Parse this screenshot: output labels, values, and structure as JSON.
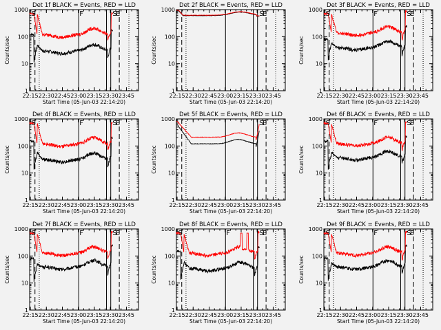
{
  "figure": {
    "layout": "3x3 grid of count-rate light curves",
    "colors": {
      "background": "#f2f2f2",
      "axis": "#000000",
      "events": "#000000",
      "lld": "#ff0000"
    }
  },
  "chart_data": [
    {
      "panel_id": "det-1f",
      "type": "line",
      "title": "Det 1f BLACK = Events, RED = LLD",
      "xlabel": "Start Time (05-Jun-03 22:14:20)",
      "ylabel": "Counts/sec",
      "y_scale": "log",
      "ylim": [
        1,
        1000
      ],
      "xlim_minutes": [
        0,
        102
      ],
      "x_tick_labels": [
        "22:15",
        "22:30",
        "22:45",
        "23:00",
        "23:15",
        "23:30",
        "23:45"
      ],
      "x_tick_offsets_min": [
        0.67,
        15.67,
        30.67,
        45.67,
        60.67,
        75.67,
        90.67
      ],
      "y_tick_labels": [
        "1",
        "10",
        "100",
        "1000"
      ],
      "y_tick_values": [
        1,
        10,
        100,
        1000
      ],
      "markers": [
        {
          "label": "S",
          "time_min": 1
        },
        {
          "label": "F",
          "time_min": 46
        },
        {
          "label": "S",
          "time_min": 77
        },
        {
          "label": "E",
          "time_min": 80
        }
      ],
      "solid_lines_min": [
        46,
        72,
        76
      ],
      "dashed_lines_min": [
        5,
        84
      ],
      "dotted_lines_min": [
        9,
        93
      ],
      "series": [
        {
          "name": "Events",
          "color": "#000000",
          "profile": "normal",
          "plateau": 30,
          "start": 120,
          "recover": 50
        },
        {
          "name": "LLD",
          "color": "#ff0000",
          "profile": "normal",
          "plateau": 120,
          "start": 700
        }
      ]
    },
    {
      "panel_id": "det-2f",
      "type": "line",
      "title": "Det 2f BLACK = Events, RED = LLD",
      "xlabel": "Start Time (05-Jun-03 22:14:20)",
      "ylabel": "Counts/sec",
      "y_scale": "log",
      "ylim": [
        1,
        1000
      ],
      "xlim_minutes": [
        0,
        102
      ],
      "x_tick_labels": [
        "22:15",
        "22:30",
        "22:45",
        "23:00",
        "23:15",
        "23:30",
        "23:45"
      ],
      "x_tick_offsets_min": [
        0.67,
        15.67,
        30.67,
        45.67,
        60.67,
        75.67,
        90.67
      ],
      "y_tick_labels": [
        "1",
        "10",
        "100",
        "1000"
      ],
      "y_tick_values": [
        1,
        10,
        100,
        1000
      ],
      "markers": [
        {
          "label": "S",
          "time_min": 77
        },
        {
          "label": "E",
          "time_min": 80
        }
      ],
      "solid_lines_min": [
        46,
        72,
        76
      ],
      "dashed_lines_min": [
        5,
        84
      ],
      "dotted_lines_min": [
        9,
        93
      ],
      "series": [
        {
          "name": "Events",
          "color": "#000000",
          "profile": "flat",
          "plateau": 600,
          "start": 900
        },
        {
          "name": "LLD",
          "color": "#ff0000",
          "profile": "flat",
          "plateau": 620,
          "start": 950
        }
      ]
    },
    {
      "panel_id": "det-3f",
      "type": "line",
      "title": "Det 3f BLACK = Events, RED = LLD",
      "xlabel": "Start Time (05-Jun-03 22:14:20)",
      "ylabel": "Counts/sec",
      "y_scale": "log",
      "ylim": [
        1,
        1000
      ],
      "xlim_minutes": [
        0,
        102
      ],
      "x_tick_labels": [
        "22:15",
        "22:30",
        "22:45",
        "23:00",
        "23:15",
        "23:30",
        "23:45"
      ],
      "x_tick_offsets_min": [
        0.67,
        15.67,
        30.67,
        45.67,
        60.67,
        75.67,
        90.67
      ],
      "y_tick_labels": [
        "1",
        "10",
        "100",
        "1000"
      ],
      "y_tick_values": [
        1,
        10,
        100,
        1000
      ],
      "markers": [
        {
          "label": "S",
          "time_min": 1
        },
        {
          "label": "F",
          "time_min": 46
        },
        {
          "label": "S",
          "time_min": 77
        },
        {
          "label": "E",
          "time_min": 80
        }
      ],
      "solid_lines_min": [
        46,
        72,
        76
      ],
      "dashed_lines_min": [
        5,
        84
      ],
      "dotted_lines_min": [
        9,
        93
      ],
      "series": [
        {
          "name": "Events",
          "color": "#000000",
          "profile": "normal",
          "plateau": 40,
          "start": 80,
          "recover": 60
        },
        {
          "name": "LLD",
          "color": "#ff0000",
          "profile": "normal",
          "plateau": 140,
          "start": 700
        }
      ]
    },
    {
      "panel_id": "det-4f",
      "type": "line",
      "title": "Det 4f BLACK = Events, RED = LLD",
      "xlabel": "Start Time (05-Jun-03 22:14:20)",
      "ylabel": "Counts/sec",
      "y_scale": "log",
      "ylim": [
        1,
        1000
      ],
      "xlim_minutes": [
        0,
        102
      ],
      "x_tick_labels": [
        "22:15",
        "22:30",
        "22:45",
        "23:00",
        "23:15",
        "23:30",
        "23:45"
      ],
      "x_tick_offsets_min": [
        0.67,
        15.67,
        30.67,
        45.67,
        60.67,
        75.67,
        90.67
      ],
      "y_tick_labels": [
        "1",
        "10",
        "100",
        "1000"
      ],
      "y_tick_values": [
        1,
        10,
        100,
        1000
      ],
      "markers": [
        {
          "label": "S",
          "time_min": 1
        },
        {
          "label": "F",
          "time_min": 46
        },
        {
          "label": "S",
          "time_min": 77
        },
        {
          "label": "E",
          "time_min": 80
        }
      ],
      "solid_lines_min": [
        46,
        72,
        76
      ],
      "dashed_lines_min": [
        5,
        84
      ],
      "dotted_lines_min": [
        9,
        93
      ],
      "series": [
        {
          "name": "Events",
          "color": "#000000",
          "profile": "normal",
          "plateau": 32,
          "start": 150,
          "recover": 60
        },
        {
          "name": "LLD",
          "color": "#ff0000",
          "profile": "normal",
          "plateau": 120,
          "start": 700
        }
      ]
    },
    {
      "panel_id": "det-5f",
      "type": "line",
      "title": "Det 5f BLACK = Events, RED = LLD",
      "xlabel": "Start Time (05-Jun-03 22:14:20)",
      "ylabel": "Counts/sec",
      "y_scale": "log",
      "ylim": [
        1,
        1000
      ],
      "xlim_minutes": [
        0,
        102
      ],
      "x_tick_labels": [
        "22:15",
        "22:30",
        "22:45",
        "23:00",
        "23:15",
        "23:30",
        "23:45"
      ],
      "x_tick_offsets_min": [
        0.67,
        15.67,
        30.67,
        45.67,
        60.67,
        75.67,
        90.67
      ],
      "y_tick_labels": [
        "1",
        "10",
        "100",
        "1000"
      ],
      "y_tick_values": [
        1,
        10,
        100,
        1000
      ],
      "markers": [
        {
          "label": "S",
          "time_min": 77
        },
        {
          "label": "E",
          "time_min": 80
        }
      ],
      "solid_lines_min": [
        46,
        72,
        76
      ],
      "dashed_lines_min": [
        5,
        84
      ],
      "dotted_lines_min": [
        9,
        93
      ],
      "series": [
        {
          "name": "Events",
          "color": "#000000",
          "profile": "smooth",
          "plateau": 120,
          "start": 600,
          "recover": 200
        },
        {
          "name": "LLD",
          "color": "#ff0000",
          "profile": "smooth",
          "plateau": 210,
          "start": 800
        }
      ]
    },
    {
      "panel_id": "det-6f",
      "type": "line",
      "title": "Det 6f BLACK = Events, RED = LLD",
      "xlabel": "Start Time (05-Jun-03 22:14:20)",
      "ylabel": "Counts/sec",
      "y_scale": "log",
      "ylim": [
        1,
        1000
      ],
      "xlim_minutes": [
        0,
        102
      ],
      "x_tick_labels": [
        "22:15",
        "22:30",
        "22:45",
        "23:00",
        "23:15",
        "23:30",
        "23:45"
      ],
      "x_tick_offsets_min": [
        0.67,
        15.67,
        30.67,
        45.67,
        60.67,
        75.67,
        90.67
      ],
      "y_tick_labels": [
        "1",
        "10",
        "100",
        "1000"
      ],
      "y_tick_values": [
        1,
        10,
        100,
        1000
      ],
      "markers": [
        {
          "label": "S",
          "time_min": 1
        },
        {
          "label": "F",
          "time_min": 46
        },
        {
          "label": "S",
          "time_min": 77
        },
        {
          "label": "E",
          "time_min": 80
        }
      ],
      "solid_lines_min": [
        46,
        72,
        76
      ],
      "dashed_lines_min": [
        5,
        84
      ],
      "dotted_lines_min": [
        9,
        93
      ],
      "series": [
        {
          "name": "Events",
          "color": "#000000",
          "profile": "normal",
          "plateau": 38,
          "start": 150,
          "recover": 60
        },
        {
          "name": "LLD",
          "color": "#ff0000",
          "profile": "normal",
          "plateau": 125,
          "start": 700
        }
      ]
    },
    {
      "panel_id": "det-7f",
      "type": "line",
      "title": "Det 7f BLACK = Events, RED = LLD",
      "xlabel": "Start Time (05-Jun-03 22:14:20)",
      "ylabel": "Counts/sec",
      "y_scale": "log",
      "ylim": [
        1,
        1000
      ],
      "xlim_minutes": [
        0,
        102
      ],
      "x_tick_labels": [
        "22:15",
        "22:30",
        "22:45",
        "23:00",
        "23:15",
        "23:30",
        "23:45"
      ],
      "x_tick_offsets_min": [
        0.67,
        15.67,
        30.67,
        45.67,
        60.67,
        75.67,
        90.67
      ],
      "y_tick_labels": [
        "1",
        "10",
        "100",
        "1000"
      ],
      "y_tick_values": [
        1,
        10,
        100,
        1000
      ],
      "markers": [
        {
          "label": "S",
          "time_min": 1
        },
        {
          "label": "F",
          "time_min": 46
        },
        {
          "label": "S",
          "time_min": 77
        },
        {
          "label": "E",
          "time_min": 80
        }
      ],
      "solid_lines_min": [
        46,
        72,
        76
      ],
      "dashed_lines_min": [
        5,
        84
      ],
      "dotted_lines_min": [
        9,
        93
      ],
      "series": [
        {
          "name": "Events",
          "color": "#000000",
          "profile": "normal",
          "plateau": 40,
          "start": 80,
          "recover": 50
        },
        {
          "name": "LLD",
          "color": "#ff0000",
          "profile": "normal",
          "plateau": 130,
          "start": 700
        }
      ]
    },
    {
      "panel_id": "det-8f",
      "type": "line",
      "title": "Det 8f BLACK = Events, RED = LLD",
      "xlabel": "Start Time (05-Jun-03 22:14:20)",
      "ylabel": "Counts/sec",
      "y_scale": "log",
      "ylim": [
        1,
        1000
      ],
      "xlim_minutes": [
        0,
        102
      ],
      "x_tick_labels": [
        "22:15",
        "22:30",
        "22:45",
        "23:00",
        "23:15",
        "23:30",
        "23:45"
      ],
      "x_tick_offsets_min": [
        0.67,
        15.67,
        30.67,
        45.67,
        60.67,
        75.67,
        90.67
      ],
      "y_tick_labels": [
        "1",
        "10",
        "100",
        "1000"
      ],
      "y_tick_values": [
        1,
        10,
        100,
        1000
      ],
      "markers": [
        {
          "label": "S",
          "time_min": 1
        },
        {
          "label": "F",
          "time_min": 46
        },
        {
          "label": "S",
          "time_min": 77
        },
        {
          "label": "E",
          "time_min": 80
        }
      ],
      "solid_lines_min": [
        46,
        72,
        76
      ],
      "dashed_lines_min": [
        5,
        84
      ],
      "dotted_lines_min": [
        9,
        93
      ],
      "series": [
        {
          "name": "Events",
          "color": "#000000",
          "profile": "normal",
          "plateau": 35,
          "start": 150,
          "recover": 60
        },
        {
          "name": "LLD",
          "color": "#ff0000",
          "profile": "spikes",
          "plateau": 130,
          "start": 700,
          "spike_min": [
            60,
            67
          ],
          "spike_level": 700
        }
      ]
    },
    {
      "panel_id": "det-9f",
      "type": "line",
      "title": "Det 9f BLACK = Events, RED = LLD",
      "xlabel": "Start Time (05-Jun-03 22:14:20)",
      "ylabel": "Counts/sec",
      "y_scale": "log",
      "ylim": [
        1,
        1000
      ],
      "xlim_minutes": [
        0,
        102
      ],
      "x_tick_labels": [
        "22:15",
        "22:30",
        "22:45",
        "23:00",
        "23:15",
        "23:30",
        "23:45"
      ],
      "x_tick_offsets_min": [
        0.67,
        15.67,
        30.67,
        45.67,
        60.67,
        75.67,
        90.67
      ],
      "y_tick_labels": [
        "1",
        "10",
        "100",
        "1000"
      ],
      "y_tick_values": [
        1,
        10,
        100,
        1000
      ],
      "markers": [
        {
          "label": "S",
          "time_min": 1
        },
        {
          "label": "F",
          "time_min": 46
        },
        {
          "label": "S",
          "time_min": 77
        },
        {
          "label": "E",
          "time_min": 80
        }
      ],
      "solid_lines_min": [
        46,
        72,
        76
      ],
      "dashed_lines_min": [
        5,
        84
      ],
      "dotted_lines_min": [
        9,
        93
      ],
      "series": [
        {
          "name": "Events",
          "color": "#000000",
          "profile": "normal",
          "plateau": 40,
          "start": 80,
          "recover": 55
        },
        {
          "name": "LLD",
          "color": "#ff0000",
          "profile": "normal",
          "plateau": 130,
          "start": 700
        }
      ]
    }
  ]
}
